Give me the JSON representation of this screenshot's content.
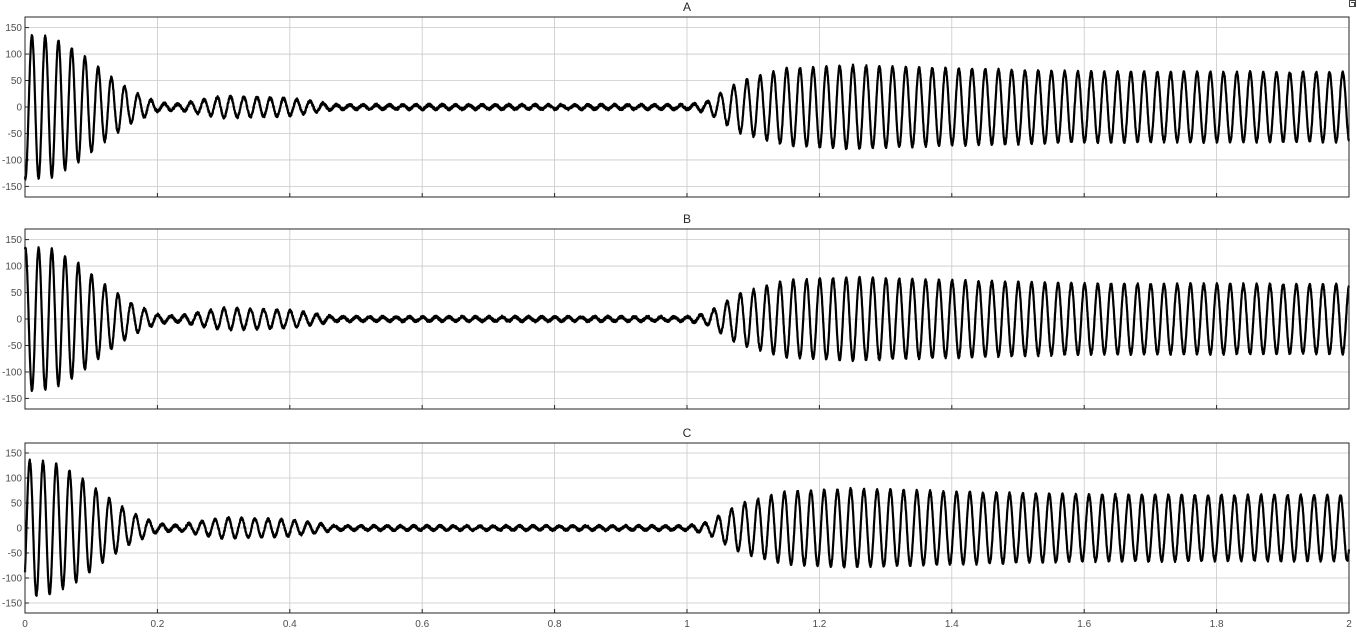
{
  "chart_data": [
    {
      "type": "line",
      "title": "A",
      "xlim": [
        0,
        2
      ],
      "ylim": [
        -170,
        170
      ],
      "xticks": [
        "0",
        "0.2",
        "0.4",
        "0.6",
        "0.8",
        "1",
        "1.2",
        "1.4",
        "1.6",
        "1.8",
        "2"
      ],
      "yticks": [
        "150",
        "100",
        "50",
        "0",
        "-50",
        "-100",
        "-150"
      ],
      "grid": true,
      "frequency_hz": 50,
      "phase_deg": -100,
      "envelope": [
        {
          "t": 0.0,
          "amplitude": 135
        },
        {
          "t": 0.04,
          "amplitude": 132
        },
        {
          "t": 0.08,
          "amplitude": 105
        },
        {
          "t": 0.12,
          "amplitude": 65
        },
        {
          "t": 0.16,
          "amplitude": 30
        },
        {
          "t": 0.2,
          "amplitude": 8
        },
        {
          "t": 0.23,
          "amplitude": 5
        },
        {
          "t": 0.3,
          "amplitude": 20
        },
        {
          "t": 0.4,
          "amplitude": 16
        },
        {
          "t": 0.47,
          "amplitude": 4
        },
        {
          "t": 1.0,
          "amplitude": 4
        },
        {
          "t": 1.03,
          "amplitude": 10
        },
        {
          "t": 1.08,
          "amplitude": 48
        },
        {
          "t": 1.15,
          "amplitude": 72
        },
        {
          "t": 1.25,
          "amplitude": 78
        },
        {
          "t": 1.4,
          "amplitude": 72
        },
        {
          "t": 1.6,
          "amplitude": 66
        },
        {
          "t": 2.0,
          "amplitude": 65
        }
      ]
    },
    {
      "type": "line",
      "title": "B",
      "xlim": [
        0,
        2
      ],
      "ylim": [
        -170,
        170
      ],
      "xticks": [
        "0",
        "0.2",
        "0.4",
        "0.6",
        "0.8",
        "1",
        "1.2",
        "1.4",
        "1.6",
        "1.8",
        "2"
      ],
      "yticks": [
        "150",
        "100",
        "50",
        "0",
        "-50",
        "-100",
        "-150"
      ],
      "grid": true,
      "frequency_hz": 50,
      "phase_deg": 80,
      "envelope": [
        {
          "t": 0.0,
          "amplitude": 135
        },
        {
          "t": 0.04,
          "amplitude": 132
        },
        {
          "t": 0.08,
          "amplitude": 105
        },
        {
          "t": 0.12,
          "amplitude": 65
        },
        {
          "t": 0.16,
          "amplitude": 30
        },
        {
          "t": 0.2,
          "amplitude": 8
        },
        {
          "t": 0.23,
          "amplitude": 5
        },
        {
          "t": 0.3,
          "amplitude": 20
        },
        {
          "t": 0.4,
          "amplitude": 16
        },
        {
          "t": 0.47,
          "amplitude": 4
        },
        {
          "t": 1.0,
          "amplitude": 4
        },
        {
          "t": 1.03,
          "amplitude": 10
        },
        {
          "t": 1.08,
          "amplitude": 48
        },
        {
          "t": 1.15,
          "amplitude": 72
        },
        {
          "t": 1.25,
          "amplitude": 78
        },
        {
          "t": 1.4,
          "amplitude": 72
        },
        {
          "t": 1.6,
          "amplitude": 66
        },
        {
          "t": 2.0,
          "amplitude": 65
        }
      ]
    },
    {
      "type": "line",
      "title": "C",
      "xlim": [
        0,
        2
      ],
      "ylim": [
        -170,
        170
      ],
      "xticks": [
        "0",
        "0.2",
        "0.4",
        "0.6",
        "0.8",
        "1",
        "1.2",
        "1.4",
        "1.6",
        "1.8",
        "2"
      ],
      "yticks": [
        "150",
        "100",
        "50",
        "0",
        "-50",
        "-100",
        "-150"
      ],
      "grid": true,
      "frequency_hz": 50,
      "phase_deg": -40,
      "envelope": [
        {
          "t": 0.0,
          "amplitude": 135
        },
        {
          "t": 0.04,
          "amplitude": 132
        },
        {
          "t": 0.08,
          "amplitude": 105
        },
        {
          "t": 0.12,
          "amplitude": 65
        },
        {
          "t": 0.16,
          "amplitude": 30
        },
        {
          "t": 0.2,
          "amplitude": 8
        },
        {
          "t": 0.23,
          "amplitude": 5
        },
        {
          "t": 0.3,
          "amplitude": 20
        },
        {
          "t": 0.4,
          "amplitude": 16
        },
        {
          "t": 0.47,
          "amplitude": 4
        },
        {
          "t": 1.0,
          "amplitude": 4
        },
        {
          "t": 1.03,
          "amplitude": 10
        },
        {
          "t": 1.08,
          "amplitude": 48
        },
        {
          "t": 1.15,
          "amplitude": 72
        },
        {
          "t": 1.25,
          "amplitude": 78
        },
        {
          "t": 1.4,
          "amplitude": 72
        },
        {
          "t": 1.6,
          "amplitude": 66
        },
        {
          "t": 2.0,
          "amplitude": 65
        }
      ]
    }
  ],
  "toolbar": {
    "restore_icon": "restore-axes-icon"
  }
}
